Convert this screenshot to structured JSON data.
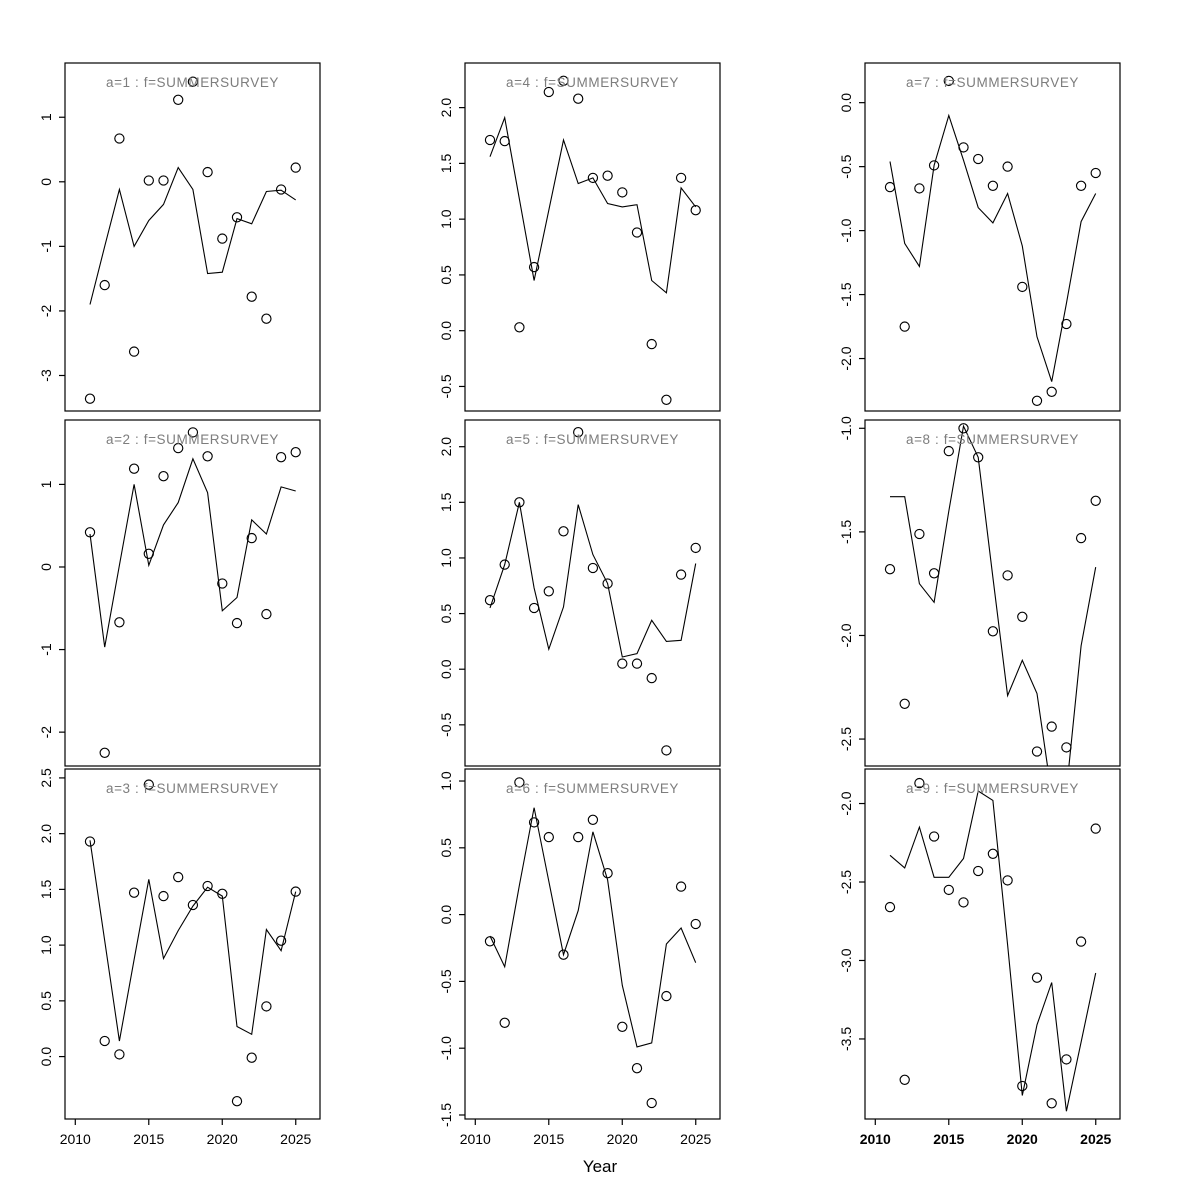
{
  "figure": {
    "xlabel": "Year",
    "background": "#ffffff",
    "frame_color": "#000000",
    "title_color": "#7d7d7d",
    "line_color": "#000000",
    "point_color": "#000000",
    "tick_label_color": "#000000"
  },
  "chart_data": [
    {
      "type": "line",
      "title": "a=1 : f=SUMMERSURVEY",
      "x": [
        2011,
        2012,
        2013,
        2014,
        2015,
        2016,
        2017,
        2018,
        2019,
        2020,
        2021,
        2022,
        2023,
        2024,
        2025
      ],
      "series": [
        {
          "name": "observed",
          "style": "points",
          "values": [
            -3.36,
            -1.6,
            0.67,
            -2.63,
            0.02,
            0.02,
            1.27,
            1.55,
            0.15,
            -0.88,
            -0.55,
            -1.78,
            -2.12,
            -0.12,
            0.22
          ]
        },
        {
          "name": "fitted",
          "style": "line",
          "values": [
            -1.9,
            -1.0,
            -0.12,
            -1.0,
            -0.6,
            -0.35,
            0.22,
            -0.12,
            -1.42,
            -1.4,
            -0.57,
            -0.65,
            -0.15,
            -0.13,
            -0.28
          ]
        }
      ],
      "xlim": [
        2009.3,
        2026.65
      ],
      "ylim": [
        -3.55,
        1.84
      ],
      "yticks": {
        "values": [
          1,
          0,
          -1,
          -2,
          -3
        ],
        "labels": [
          "1",
          "0",
          "-1",
          "-2",
          "-3"
        ]
      },
      "xticks": {
        "values": [
          2010,
          2015,
          2020,
          2025
        ],
        "labels": [
          "2010",
          "2015",
          "2020",
          "2025"
        ]
      },
      "show_x_axis": false,
      "bold_x_tick_labels": false,
      "grid": false,
      "legend": "none"
    },
    {
      "type": "line",
      "title": "a=2 : f=SUMMERSURVEY",
      "x": [
        2011,
        2012,
        2013,
        2014,
        2015,
        2016,
        2017,
        2018,
        2019,
        2020,
        2021,
        2022,
        2023,
        2024,
        2025
      ],
      "series": [
        {
          "name": "observed",
          "style": "points",
          "values": [
            0.42,
            -2.25,
            -0.67,
            1.19,
            0.16,
            1.1,
            1.44,
            1.63,
            1.34,
            -0.2,
            -0.68,
            0.35,
            -0.57,
            1.33,
            1.39
          ]
        },
        {
          "name": "fitted",
          "style": "line",
          "values": [
            0.4,
            -0.97,
            0.02,
            1.0,
            0.02,
            0.51,
            0.78,
            1.31,
            0.9,
            -0.53,
            -0.37,
            0.57,
            0.4,
            0.97,
            0.92
          ]
        }
      ],
      "xlim": [
        2009.3,
        2026.65
      ],
      "ylim": [
        -2.41,
        1.78
      ],
      "yticks": {
        "values": [
          1,
          0,
          -1,
          -2
        ],
        "labels": [
          "1",
          "0",
          "-1",
          "-2"
        ]
      },
      "xticks": {
        "values": [
          2010,
          2015,
          2020,
          2025
        ],
        "labels": [
          "2010",
          "2015",
          "2020",
          "2025"
        ]
      },
      "show_x_axis": false,
      "bold_x_tick_labels": false,
      "grid": false,
      "legend": "none"
    },
    {
      "type": "line",
      "title": "a=3 : f=SUMMERSURVEY",
      "x": [
        2011,
        2012,
        2013,
        2014,
        2015,
        2016,
        2017,
        2018,
        2019,
        2020,
        2021,
        2022,
        2023,
        2024,
        2025
      ],
      "series": [
        {
          "name": "observed",
          "style": "points",
          "values": [
            1.93,
            0.14,
            0.02,
            1.47,
            2.44,
            1.44,
            1.61,
            1.36,
            1.53,
            1.46,
            -0.4,
            -0.01,
            0.45,
            1.04,
            1.48
          ]
        },
        {
          "name": "fitted",
          "style": "line",
          "values": [
            1.94,
            1.04,
            0.14,
            0.87,
            1.59,
            0.88,
            1.13,
            1.35,
            1.52,
            1.44,
            0.27,
            0.2,
            1.14,
            0.95,
            1.48
          ]
        }
      ],
      "xlim": [
        2009.3,
        2026.65
      ],
      "ylim": [
        -0.56,
        2.58
      ],
      "yticks": {
        "values": [
          2.5,
          2.0,
          1.5,
          1.0,
          0.5,
          0.0
        ],
        "labels": [
          "2.5",
          "2.0",
          "1.5",
          "1.0",
          "0.5",
          "0.0"
        ]
      },
      "xticks": {
        "values": [
          2010,
          2015,
          2020,
          2025
        ],
        "labels": [
          "2010",
          "2015",
          "2020",
          "2025"
        ]
      },
      "show_x_axis": true,
      "bold_x_tick_labels": false,
      "grid": false,
      "legend": "none"
    },
    {
      "type": "line",
      "title": "a=4 : f=SUMMERSURVEY",
      "x": [
        2011,
        2012,
        2013,
        2014,
        2015,
        2016,
        2017,
        2018,
        2019,
        2020,
        2021,
        2022,
        2023,
        2024,
        2025
      ],
      "series": [
        {
          "name": "observed",
          "style": "points",
          "values": [
            1.71,
            1.7,
            0.03,
            0.57,
            2.14,
            2.24,
            2.08,
            1.37,
            1.39,
            1.24,
            0.88,
            -0.12,
            -0.62,
            1.37,
            1.08
          ]
        },
        {
          "name": "fitted",
          "style": "line",
          "values": [
            1.56,
            1.91,
            1.18,
            0.45,
            1.08,
            1.71,
            1.32,
            1.37,
            1.14,
            1.11,
            1.13,
            0.45,
            0.34,
            1.28,
            1.11
          ]
        }
      ],
      "xlim": [
        2009.3,
        2026.65
      ],
      "ylim": [
        -0.72,
        2.4
      ],
      "yticks": {
        "values": [
          2.0,
          1.5,
          1.0,
          0.5,
          0.0,
          -0.5
        ],
        "labels": [
          "2.0",
          "1.5",
          "1.0",
          "0.5",
          "0.0",
          "-0.5"
        ]
      },
      "xticks": {
        "values": [
          2010,
          2015,
          2020,
          2025
        ],
        "labels": [
          "2010",
          "2015",
          "2020",
          "2025"
        ]
      },
      "show_x_axis": false,
      "bold_x_tick_labels": false,
      "grid": false,
      "legend": "none"
    },
    {
      "type": "line",
      "title": "a=5 : f=SUMMERSURVEY",
      "x": [
        2011,
        2012,
        2013,
        2014,
        2015,
        2016,
        2017,
        2018,
        2019,
        2020,
        2021,
        2022,
        2023,
        2024,
        2025
      ],
      "series": [
        {
          "name": "observed",
          "style": "points",
          "values": [
            0.62,
            0.94,
            1.5,
            0.55,
            0.7,
            1.24,
            2.13,
            0.91,
            0.77,
            0.05,
            0.05,
            -0.08,
            -0.73,
            0.85,
            1.09
          ]
        },
        {
          "name": "fitted",
          "style": "line",
          "values": [
            0.55,
            0.94,
            1.5,
            0.73,
            0.18,
            0.56,
            1.48,
            1.03,
            0.77,
            0.11,
            0.14,
            0.44,
            0.25,
            0.26,
            0.95
          ]
        }
      ],
      "xlim": [
        2009.3,
        2026.65
      ],
      "ylim": [
        -0.87,
        2.24
      ],
      "yticks": {
        "values": [
          2.0,
          1.5,
          1.0,
          0.5,
          0.0,
          -0.5
        ],
        "labels": [
          "2.0",
          "1.5",
          "1.0",
          "0.5",
          "0.0",
          "-0.5"
        ]
      },
      "xticks": {
        "values": [
          2010,
          2015,
          2020,
          2025
        ],
        "labels": [
          "2010",
          "2015",
          "2020",
          "2025"
        ]
      },
      "show_x_axis": false,
      "bold_x_tick_labels": false,
      "grid": false,
      "legend": "none"
    },
    {
      "type": "line",
      "title": "a=6 : f=SUMMERSURVEY",
      "x": [
        2011,
        2012,
        2013,
        2014,
        2015,
        2016,
        2017,
        2018,
        2019,
        2020,
        2021,
        2022,
        2023,
        2024,
        2025
      ],
      "series": [
        {
          "name": "observed",
          "style": "points",
          "values": [
            -0.2,
            -0.81,
            0.99,
            0.69,
            0.58,
            -0.3,
            0.58,
            0.71,
            0.31,
            -0.84,
            -1.15,
            -1.41,
            -0.61,
            0.21,
            -0.07
          ]
        },
        {
          "name": "fitted",
          "style": "line",
          "values": [
            -0.16,
            -0.39,
            0.22,
            0.8,
            0.25,
            -0.3,
            0.03,
            0.62,
            0.26,
            -0.53,
            -0.99,
            -0.96,
            -0.22,
            -0.1,
            -0.36
          ]
        }
      ],
      "xlim": [
        2009.3,
        2026.65
      ],
      "ylim": [
        -1.53,
        1.09
      ],
      "yticks": {
        "values": [
          1.0,
          0.5,
          0.0,
          -0.5,
          -1.0,
          -1.5
        ],
        "labels": [
          "1.0",
          "0.5",
          "0.0",
          "-0.5",
          "-1.0",
          "-1.5"
        ]
      },
      "xticks": {
        "values": [
          2010,
          2015,
          2020,
          2025
        ],
        "labels": [
          "2010",
          "2015",
          "2020",
          "2025"
        ]
      },
      "show_x_axis": true,
      "bold_x_tick_labels": false,
      "grid": false,
      "legend": "none"
    },
    {
      "type": "line",
      "title": "a=7 : f=SUMMERSURVEY",
      "x": [
        2011,
        2012,
        2013,
        2014,
        2015,
        2016,
        2017,
        2018,
        2019,
        2020,
        2021,
        2022,
        2023,
        2024,
        2025
      ],
      "series": [
        {
          "name": "observed",
          "style": "points",
          "values": [
            -0.66,
            -1.75,
            -0.67,
            -0.49,
            0.17,
            -0.35,
            -0.44,
            -0.65,
            -0.5,
            -1.44,
            -2.33,
            -2.26,
            -1.73,
            -0.65,
            -0.55
          ]
        },
        {
          "name": "fitted",
          "style": "line",
          "values": [
            -0.46,
            -1.1,
            -1.28,
            -0.49,
            -0.1,
            -0.45,
            -0.82,
            -0.94,
            -0.71,
            -1.12,
            -1.83,
            -2.18,
            -1.57,
            -0.93,
            -0.71
          ]
        }
      ],
      "xlim": [
        2009.3,
        2026.65
      ],
      "ylim": [
        -2.41,
        0.31
      ],
      "yticks": {
        "values": [
          0.0,
          -0.5,
          -1.0,
          -1.5,
          -2.0
        ],
        "labels": [
          "0.0",
          "-0.5",
          "-1.0",
          "-1.5",
          "-2.0"
        ]
      },
      "xticks": {
        "values": [
          2010,
          2015,
          2020,
          2025
        ],
        "labels": [
          "2010",
          "2015",
          "2020",
          "2025"
        ]
      },
      "show_x_axis": false,
      "bold_x_tick_labels": false,
      "grid": false,
      "legend": "none"
    },
    {
      "type": "line",
      "title": "a=8 : f=SUMMERSURVEY",
      "x": [
        2011,
        2012,
        2013,
        2014,
        2015,
        2016,
        2017,
        2018,
        2019,
        2020,
        2021,
        2022,
        2023,
        2024,
        2025
      ],
      "series": [
        {
          "name": "observed",
          "style": "points",
          "values": [
            -1.68,
            -2.33,
            -1.51,
            -1.7,
            -1.11,
            -1.0,
            -1.14,
            -1.98,
            -1.71,
            -1.91,
            -2.56,
            -2.44,
            -2.54,
            -1.53,
            -1.35
          ]
        },
        {
          "name": "fitted",
          "style": "line",
          "values": [
            -1.33,
            -1.33,
            -1.75,
            -1.84,
            -1.4,
            -0.99,
            -1.14,
            -1.72,
            -2.29,
            -2.12,
            -2.28,
            -2.77,
            -2.75,
            -2.05,
            -1.67
          ]
        }
      ],
      "xlim": [
        2009.3,
        2026.65
      ],
      "ylim": [
        -2.63,
        -0.96
      ],
      "yticks": {
        "values": [
          -1.0,
          -1.5,
          -2.0,
          -2.5
        ],
        "labels": [
          "-1.0",
          "-1.5",
          "-2.0",
          "-2.5"
        ]
      },
      "xticks": {
        "values": [
          2010,
          2015,
          2020,
          2025
        ],
        "labels": [
          "2010",
          "2015",
          "2020",
          "2025"
        ]
      },
      "show_x_axis": false,
      "bold_x_tick_labels": false,
      "grid": false,
      "legend": "none"
    },
    {
      "type": "line",
      "title": "a=9 : f=SUMMERSURVEY",
      "x": [
        2011,
        2012,
        2013,
        2014,
        2015,
        2016,
        2017,
        2018,
        2019,
        2020,
        2021,
        2022,
        2023,
        2024,
        2025
      ],
      "series": [
        {
          "name": "observed",
          "style": "points",
          "values": [
            -2.66,
            -3.76,
            -1.87,
            -2.21,
            -2.55,
            -2.63,
            -2.43,
            -2.32,
            -2.49,
            -3.8,
            -3.11,
            -3.91,
            -3.63,
            -2.88,
            -2.16
          ]
        },
        {
          "name": "fitted",
          "style": "line",
          "values": [
            -2.33,
            -2.41,
            -2.15,
            -2.47,
            -2.47,
            -2.35,
            -1.92,
            -1.98,
            -2.9,
            -3.86,
            -3.41,
            -3.14,
            -3.96,
            -3.52,
            -3.08
          ]
        }
      ],
      "xlim": [
        2009.3,
        2026.65
      ],
      "ylim": [
        -4.01,
        -1.78
      ],
      "yticks": {
        "values": [
          -2.0,
          -2.5,
          -3.0,
          -3.5
        ],
        "labels": [
          "-2.0",
          "-2.5",
          "-3.0",
          "-3.5"
        ]
      },
      "xticks": {
        "values": [
          2010,
          2015,
          2020,
          2025
        ],
        "labels": [
          "2010",
          "2015",
          "2020",
          "2025"
        ]
      },
      "show_x_axis": true,
      "bold_x_tick_labels": true,
      "grid": false,
      "legend": "none"
    }
  ]
}
